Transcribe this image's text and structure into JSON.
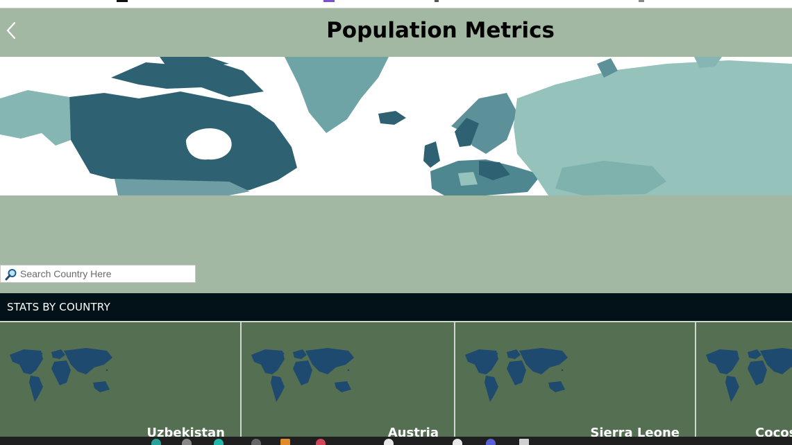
{
  "header": {
    "title": "Population Metrics"
  },
  "search": {
    "placeholder": "Search Country Here"
  },
  "section": {
    "title": "STATS BY COUNTRY"
  },
  "countries": [
    {
      "name": "Uzbekistan"
    },
    {
      "name": "Austria"
    },
    {
      "name": "Sierra Leone"
    },
    {
      "name": "Cocos"
    }
  ],
  "colors": {
    "header_bg": "#a2b8a2",
    "stats_bar": "#031218",
    "card_bg": "#556f52",
    "map_dark": "#2e6272",
    "map_mid": "#5c919a",
    "map_light": "#95c2bb",
    "card_map": "#1d4a6e"
  },
  "icons": {
    "back": "chevron-left-icon",
    "search": "magnifier-icon",
    "card": "world-map-icon"
  }
}
